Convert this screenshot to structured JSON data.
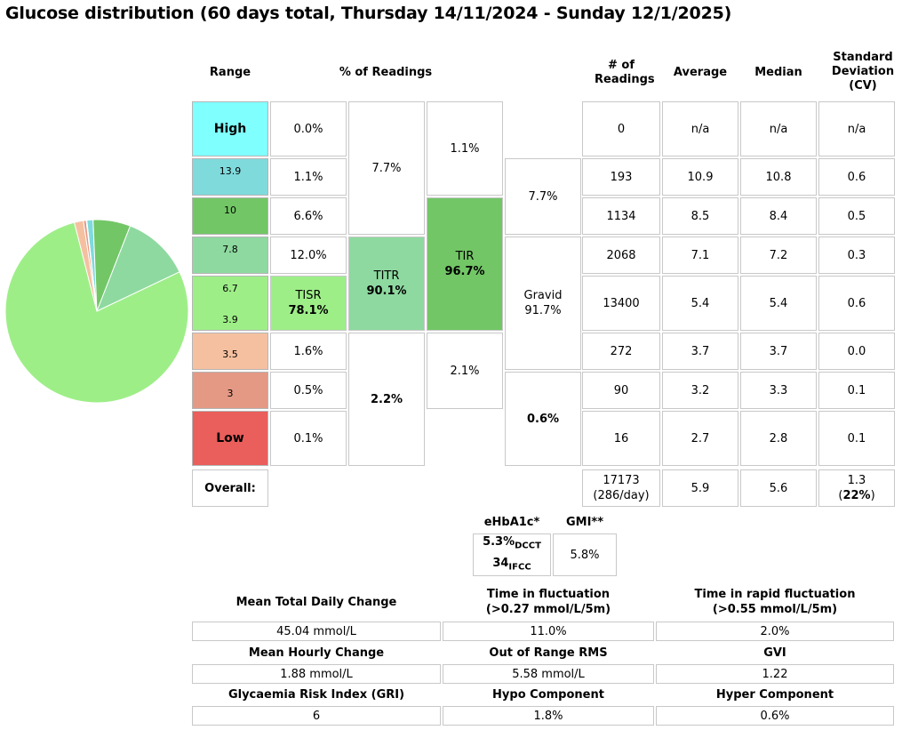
{
  "title": "Glucose distribution (60 days total, Thursday 14/11/2024 - Sunday 12/1/2025)",
  "headers": {
    "range": "Range",
    "pct": "% of Readings",
    "num": "# of Readings",
    "avg": "Average",
    "median": "Median",
    "sd_line1": "Standard",
    "sd_line2": "Deviation",
    "sd_line3": "(CV)"
  },
  "ranges": [
    {
      "label": "High",
      "pct": "0.0%",
      "count": "0",
      "avg": "n/a",
      "median": "n/a",
      "sd": "n/a",
      "color": "#80ffff"
    },
    {
      "label": "13.9",
      "pct": "1.1%",
      "count": "193",
      "avg": "10.9",
      "median": "10.8",
      "sd": "0.6",
      "color": "#7fdadc"
    },
    {
      "label": "10",
      "pct": "6.6%",
      "count": "1134",
      "avg": "8.5",
      "median": "8.4",
      "sd": "0.5",
      "color": "#72c666"
    },
    {
      "label": "7.8",
      "pct": "12.0%",
      "count": "2068",
      "avg": "7.1",
      "median": "7.2",
      "sd": "0.3",
      "color": "#8ed9a0"
    },
    {
      "label_top": "6.7",
      "label_bottom": "3.9",
      "tisr_label": "TISR",
      "tisr_value": "78.1%",
      "count": "13400",
      "avg": "5.4",
      "median": "5.4",
      "sd": "0.6",
      "color": "#9eee88"
    },
    {
      "label": "3.5",
      "pct": "1.6%",
      "count": "272",
      "avg": "3.7",
      "median": "3.7",
      "sd": "0.0",
      "color": "#f5c0a0"
    },
    {
      "label": "3",
      "pct": "0.5%",
      "count": "90",
      "avg": "3.2",
      "median": "3.3",
      "sd": "0.1",
      "color": "#e49984"
    },
    {
      "label": "Low",
      "pct": "0.1%",
      "count": "16",
      "avg": "2.7",
      "median": "2.8",
      "sd": "0.1",
      "color": "#ea5e5b"
    }
  ],
  "groups": {
    "above_titr": "7.7%",
    "titr_label": "TITR",
    "titr_value": "90.1%",
    "below_titr": "2.2%",
    "above_tir": "1.1%",
    "tir_label": "TIR",
    "tir_value": "96.7%",
    "below_tir": "2.1%",
    "gravid_above": "7.7%",
    "gravid_label": "Gravid",
    "gravid_value": "91.7%",
    "gravid_below": "0.6%"
  },
  "overall": {
    "label": "Overall:",
    "count": "17173",
    "per_day": "(286/day)",
    "avg": "5.9",
    "median": "5.6",
    "sd": "1.3",
    "cv": "22%"
  },
  "hba1c": {
    "header": "eHbA1c*",
    "dcct_value": "5.3%",
    "dcct_unit": "DCCT",
    "ifcc_value": "34",
    "ifcc_unit": "IFCC",
    "gmi_header": "GMI**",
    "gmi_value": "5.8%"
  },
  "stats": [
    [
      {
        "label": "Mean Total Daily Change",
        "value": "45.04 mmol/L"
      },
      {
        "label": "Time in fluctuation",
        "label2": "(>0.27 mmol/L/5m)",
        "value": "11.0%"
      },
      {
        "label": "Time in rapid fluctuation",
        "label2": "(>0.55 mmol/L/5m)",
        "value": "2.0%"
      }
    ],
    [
      {
        "label": "Mean Hourly Change",
        "value": "1.88 mmol/L"
      },
      {
        "label": "Out of Range RMS",
        "value": "5.58 mmol/L"
      },
      {
        "label": "GVI",
        "value": "1.22"
      }
    ],
    [
      {
        "label": "Glycaemia Risk Index (GRI)",
        "value": "6"
      },
      {
        "label": "Hypo Component",
        "value": "1.8%"
      },
      {
        "label": "Hyper Component",
        "value": "0.6%"
      }
    ]
  ],
  "chart_data": {
    "type": "pie",
    "title": "",
    "slices": [
      {
        "label": "13.9",
        "value": 1.1,
        "color": "#7fdadc"
      },
      {
        "label": "10",
        "value": 6.6,
        "color": "#72c666"
      },
      {
        "label": "7.8",
        "value": 12.0,
        "color": "#8ed9a0"
      },
      {
        "label": "6.7-3.9",
        "value": 78.1,
        "color": "#9eee88"
      },
      {
        "label": "3.5",
        "value": 1.6,
        "color": "#f5c0a0"
      },
      {
        "label": "3",
        "value": 0.5,
        "color": "#e49984"
      },
      {
        "label": "Low",
        "value": 0.1,
        "color": "#ea5e5b"
      }
    ]
  }
}
